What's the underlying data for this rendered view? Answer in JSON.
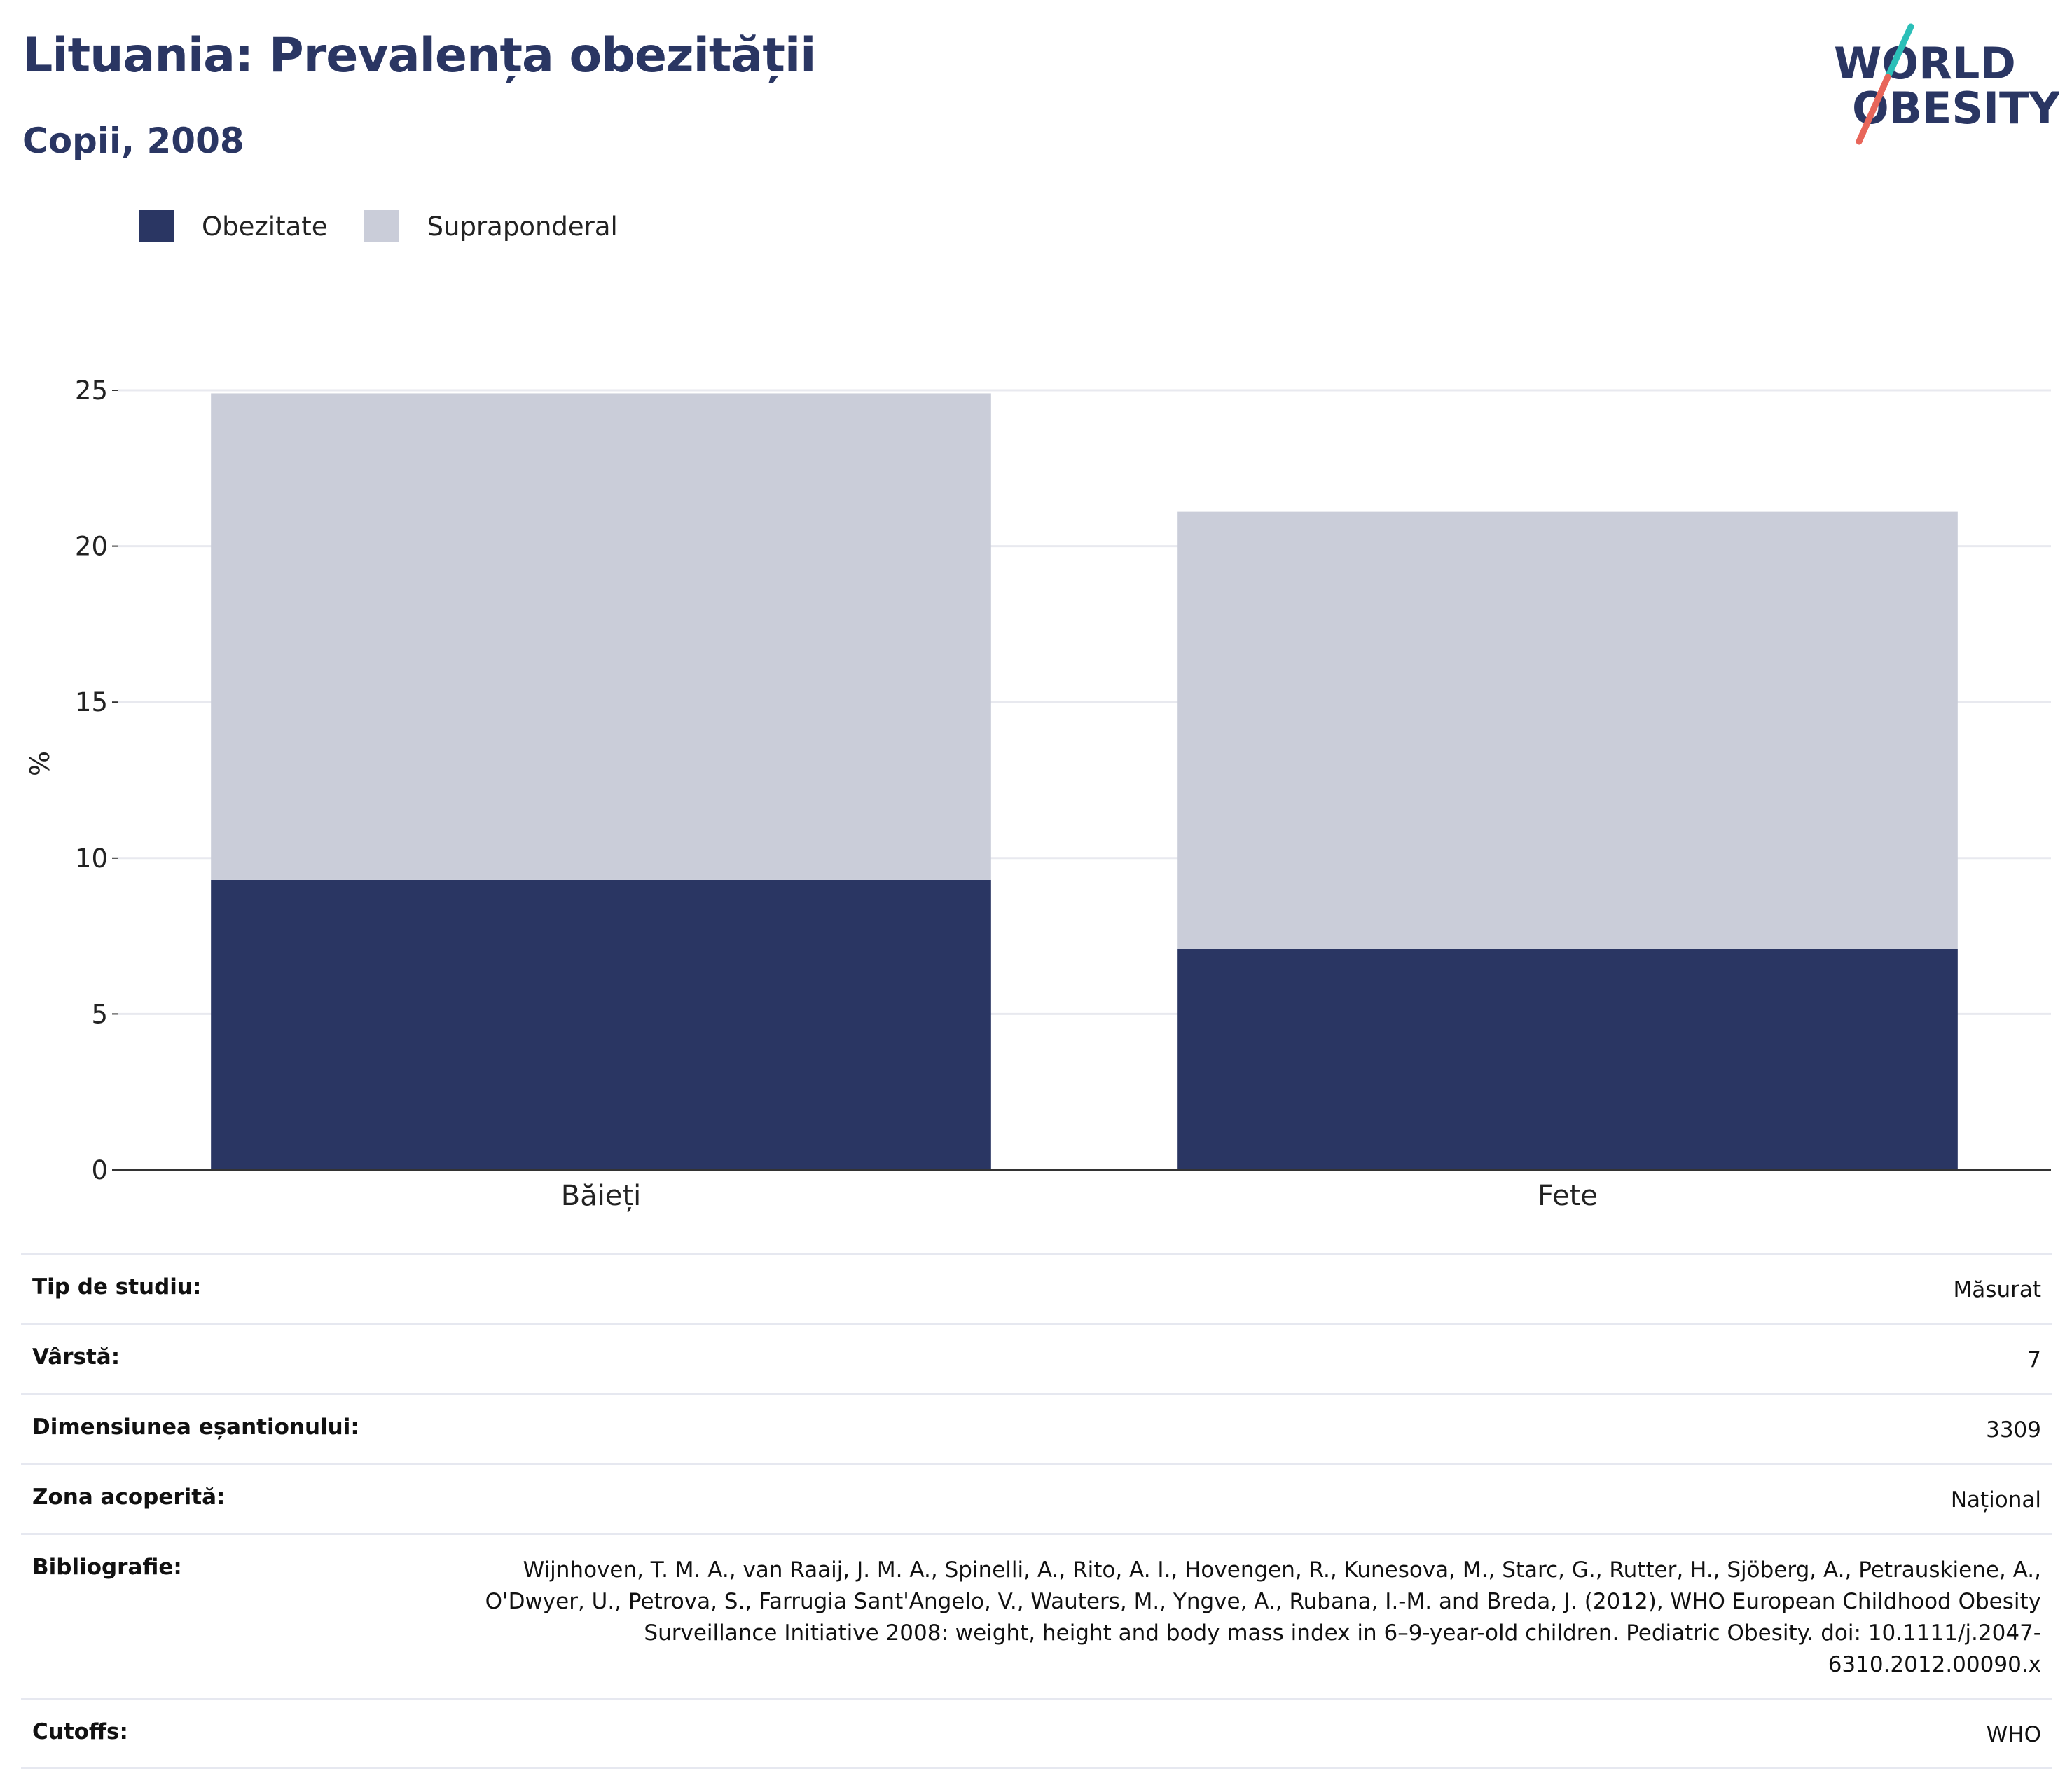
{
  "header": {
    "title": "Lituania: Prevalența obezității",
    "subtitle": "Copii, 2008"
  },
  "logo": {
    "line1": "WORLD",
    "line2": "OBESITY",
    "accent_colors": [
      "#2bbfb8",
      "#e8665a"
    ],
    "text_color": "#2a3663"
  },
  "colors": {
    "obezitate": "#2a3663",
    "supraponderal": "#cacdd9",
    "grid": "#e8e9ef",
    "axis": "#333333"
  },
  "chart_data": {
    "type": "bar",
    "stacked": true,
    "categories": [
      "Băieți",
      "Fete"
    ],
    "series": [
      {
        "name": "Obezitate",
        "values": [
          9.3,
          7.1
        ]
      },
      {
        "name": "Supraponderal",
        "values": [
          15.6,
          14.0
        ]
      }
    ],
    "ylabel": "%",
    "ylim": [
      0,
      25
    ],
    "yticks": [
      0,
      5,
      10,
      15,
      20,
      25
    ],
    "grid": true,
    "legend_position": "top-left"
  },
  "details": [
    {
      "label": "Tip de studiu:",
      "value": "Măsurat"
    },
    {
      "label": "Vârstă:",
      "value": "7"
    },
    {
      "label": "Dimensiunea eșantionului:",
      "value": "3309"
    },
    {
      "label": "Zona acoperită:",
      "value": "Național"
    },
    {
      "label": "Bibliografie:",
      "value": "Wijnhoven, T. M. A., van Raaij, J. M. A., Spinelli, A., Rito, A. I., Hovengen, R., Kunesova, M., Starc, G., Rutter, H., Sjöberg, A., Petrauskiene, A., O'Dwyer, U., Petrova, S., Farrugia Sant'Angelo, V., Wauters, M., Yngve, A., Rubana, I.-M. and Breda, J. (2012), WHO European Childhood Obesity Surveillance Initiative 2008: weight, height and body mass index in 6–9-year-old children. Pediatric Obesity. doi: 10.1111/j.2047-6310.2012.00090.x"
    },
    {
      "label": "Cutoffs:",
      "value": "WHO"
    }
  ]
}
